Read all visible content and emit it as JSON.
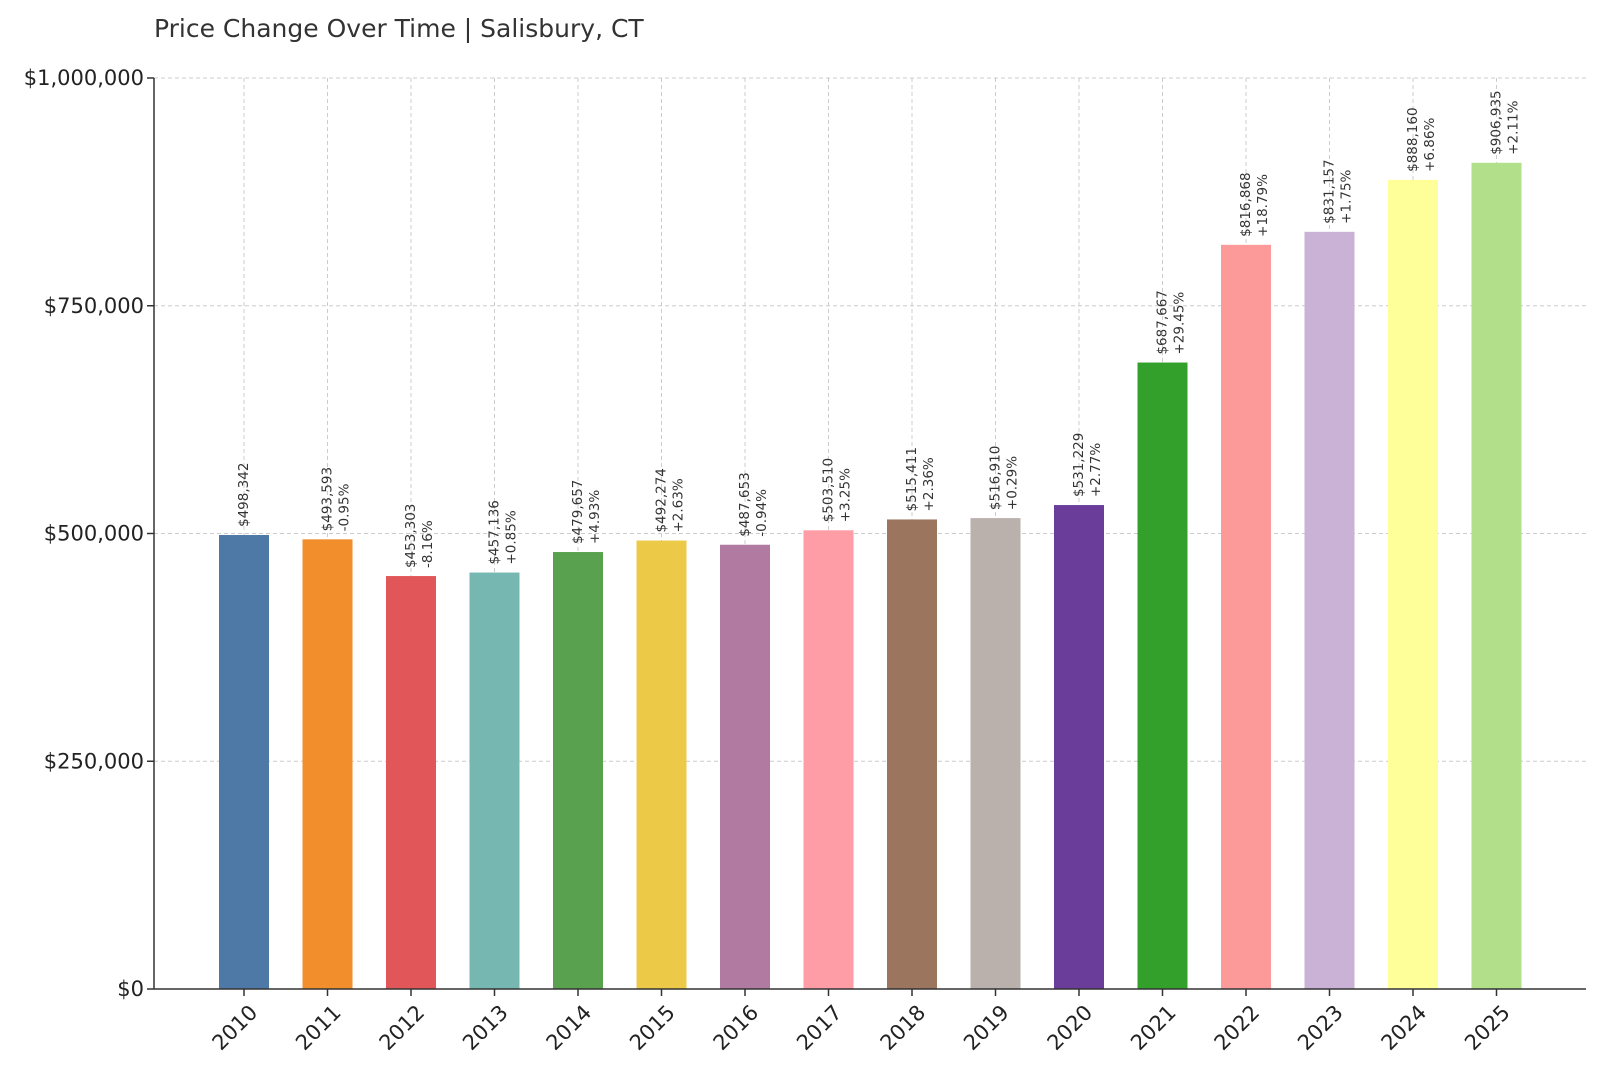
{
  "chart_data": {
    "type": "bar",
    "title": "Price Change Over Time | Salisbury, CT",
    "xlabel": "",
    "ylabel": "",
    "ylim": [
      0,
      1000000
    ],
    "yticks": [
      0,
      250000,
      500000,
      750000,
      1000000
    ],
    "ytick_labels": [
      "$0",
      "$250,000",
      "$500,000",
      "$750,000",
      "$1,000,000"
    ],
    "grid": true,
    "categories": [
      "2010",
      "2011",
      "2012",
      "2013",
      "2014",
      "2015",
      "2016",
      "2017",
      "2018",
      "2019",
      "2020",
      "2021",
      "2022",
      "2023",
      "2024",
      "2025"
    ],
    "values": [
      498342,
      493593,
      453303,
      457136,
      479657,
      492274,
      487653,
      503510,
      515411,
      516910,
      531229,
      687667,
      816868,
      831157,
      888160,
      906935
    ],
    "value_labels": [
      "$498,342",
      "$493,593",
      "$453,303",
      "$457,136",
      "$479,657",
      "$492,274",
      "$487,653",
      "$503,510",
      "$515,411",
      "$516,910",
      "$531,229",
      "$687,667",
      "$816,868",
      "$831,157",
      "$888,160",
      "$906,935"
    ],
    "change_labels": [
      "",
      "-0.95%",
      "-8.16%",
      "+0.85%",
      "+4.93%",
      "+2.63%",
      "-0.94%",
      "+3.25%",
      "+2.36%",
      "+0.29%",
      "+2.77%",
      "+29.45%",
      "+18.79%",
      "+1.75%",
      "+6.86%",
      "+2.11%"
    ],
    "colors": [
      "#4e79a7",
      "#f28e2b",
      "#e15759",
      "#76b7b2",
      "#59a14f",
      "#edc948",
      "#b07aa1",
      "#ff9da7",
      "#9c755f",
      "#bab0ac",
      "#6a3d9a",
      "#33a02c",
      "#fb9a99",
      "#cab2d6",
      "#ffff99",
      "#b2df8a"
    ]
  }
}
